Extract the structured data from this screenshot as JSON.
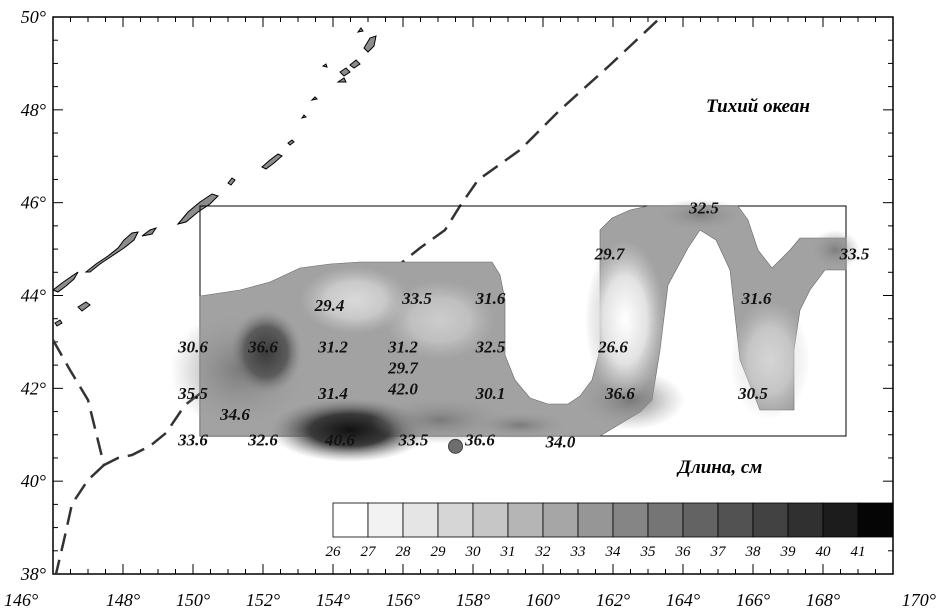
{
  "map": {
    "ocean_label": "Тихий океан",
    "legend_title": "Длина, см",
    "x_ticks": [
      "146°",
      "148°",
      "150°",
      "152°",
      "154°",
      "156°",
      "158°",
      "160°",
      "162°",
      "164°",
      "166°",
      "168°",
      "170°"
    ],
    "y_ticks": [
      "50°",
      "48°",
      "46°",
      "44°",
      "42°",
      "40°",
      "38°"
    ],
    "lon_range": [
      146,
      170
    ],
    "lat_range": [
      38,
      50
    ],
    "survey_box": {
      "lon": [
        150,
        168
      ],
      "lat": [
        41,
        46
      ]
    },
    "station_marker": {
      "lon": 157.5,
      "lat": 40.75
    },
    "values": [
      {
        "text": "32.5",
        "lon": 164.6,
        "lat": 45.9
      },
      {
        "text": "33.5",
        "lon": 168.9,
        "lat": 44.9
      },
      {
        "text": "29.7",
        "lon": 161.9,
        "lat": 44.9
      },
      {
        "text": "29.4",
        "lon": 153.9,
        "lat": 43.8
      },
      {
        "text": "33.5",
        "lon": 156.4,
        "lat": 43.95
      },
      {
        "text": "31.6",
        "lon": 158.5,
        "lat": 43.95
      },
      {
        "text": "31.6",
        "lon": 166.1,
        "lat": 43.95
      },
      {
        "text": "30.6",
        "lon": 150.0,
        "lat": 42.9
      },
      {
        "text": "36.6",
        "lon": 152.0,
        "lat": 42.9
      },
      {
        "text": "31.2",
        "lon": 154.0,
        "lat": 42.9
      },
      {
        "text": "31.2",
        "lon": 156.0,
        "lat": 42.9
      },
      {
        "text": "32.5",
        "lon": 158.5,
        "lat": 42.9
      },
      {
        "text": "26.6",
        "lon": 162.0,
        "lat": 42.9
      },
      {
        "text": "29.7",
        "lon": 156.0,
        "lat": 42.45
      },
      {
        "text": "35.5",
        "lon": 150.0,
        "lat": 41.9
      },
      {
        "text": "31.4",
        "lon": 154.0,
        "lat": 41.9
      },
      {
        "text": "42.0",
        "lon": 156.0,
        "lat": 42.0
      },
      {
        "text": "30.1",
        "lon": 158.5,
        "lat": 41.9
      },
      {
        "text": "36.6",
        "lon": 162.2,
        "lat": 41.9
      },
      {
        "text": "30.5",
        "lon": 166.0,
        "lat": 41.9
      },
      {
        "text": "34.6",
        "lon": 151.2,
        "lat": 41.45
      },
      {
        "text": "33.6",
        "lon": 150.0,
        "lat": 40.9
      },
      {
        "text": "32.6",
        "lon": 152.0,
        "lat": 40.9
      },
      {
        "text": "40.6",
        "lon": 154.2,
        "lat": 40.9
      },
      {
        "text": "33.5",
        "lon": 156.3,
        "lat": 40.9
      },
      {
        "text": "36.6",
        "lon": 158.2,
        "lat": 40.9
      },
      {
        "text": "34.0",
        "lon": 160.5,
        "lat": 40.85
      }
    ],
    "scale": {
      "labels": [
        "26",
        "27",
        "28",
        "29",
        "30",
        "31",
        "32",
        "33",
        "34",
        "35",
        "36",
        "37",
        "38",
        "39",
        "40",
        "41"
      ],
      "colors": [
        "#ffffff",
        "#f2f2f2",
        "#e5e5e5",
        "#d6d6d6",
        "#c6c6c6",
        "#b5b5b5",
        "#a6a6a6",
        "#969696",
        "#858585",
        "#757575",
        "#636363",
        "#525252",
        "#424242",
        "#303030",
        "#1c1c1c",
        "#050505"
      ]
    }
  }
}
